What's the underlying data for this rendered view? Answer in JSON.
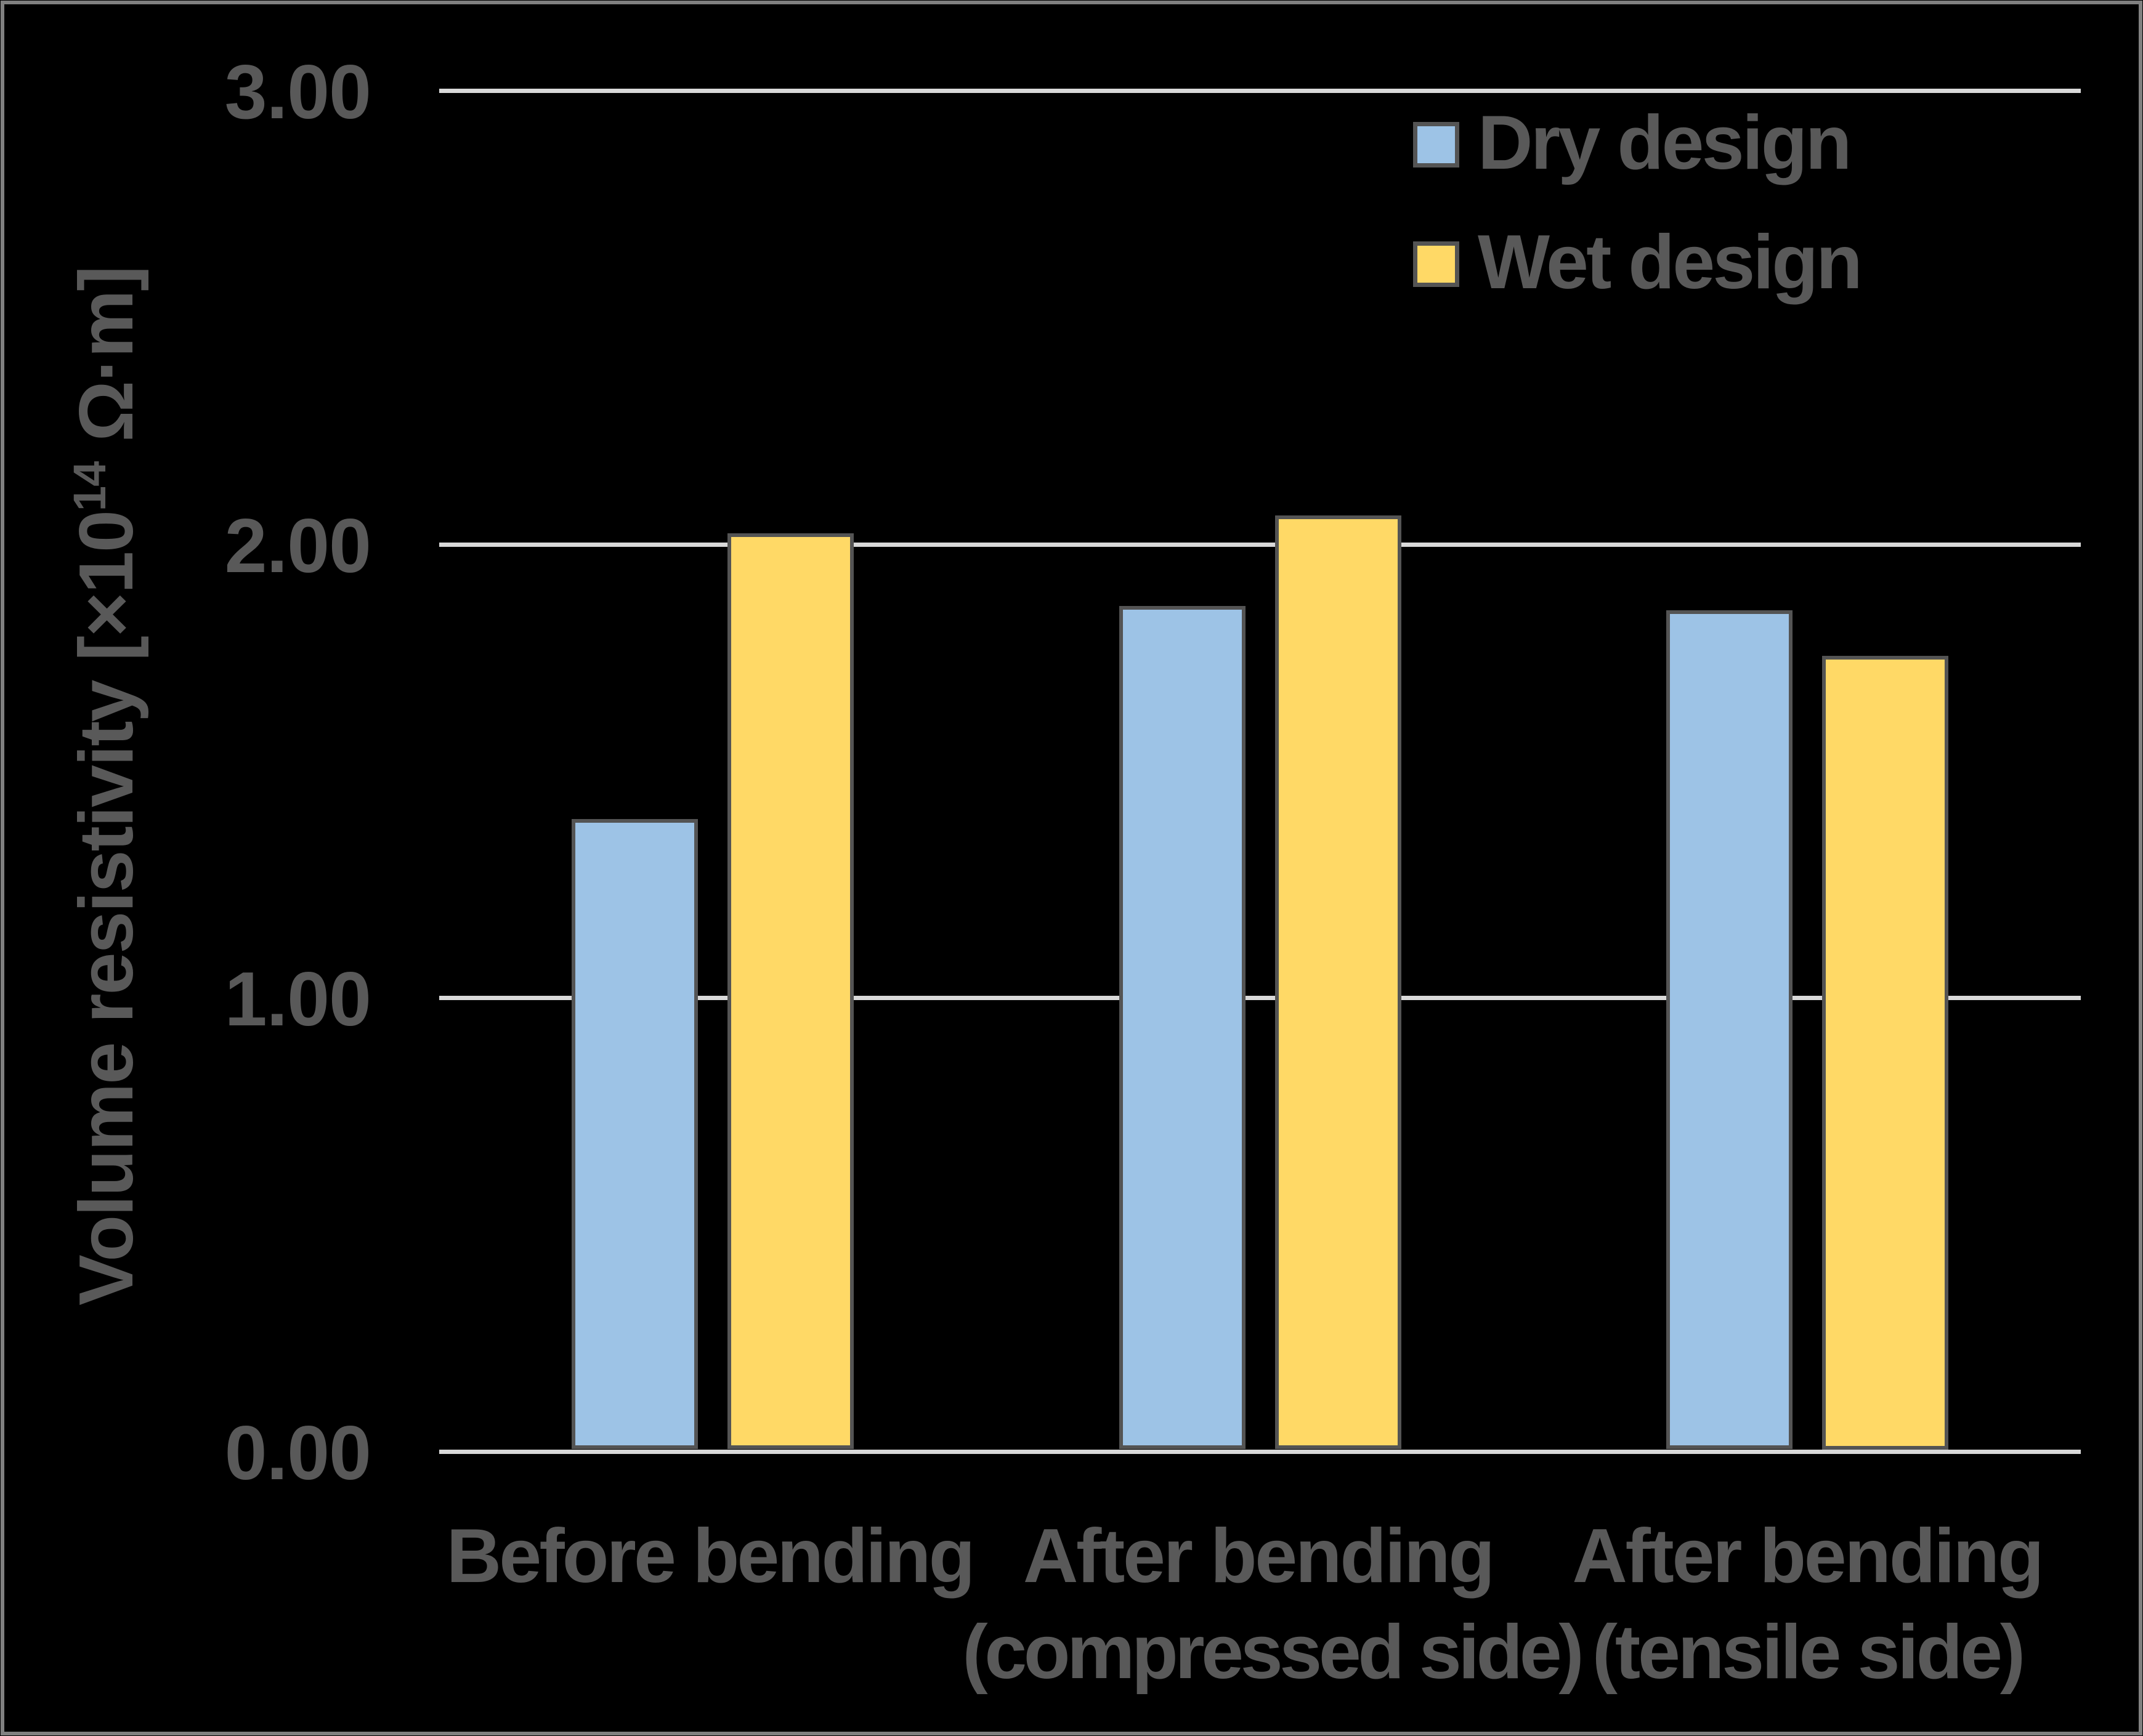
{
  "chart_data": {
    "type": "bar",
    "categories": [
      {
        "line1": "Before bending",
        "line2": ""
      },
      {
        "line1": "After bending",
        "line2": "(compressed side)"
      },
      {
        "line1": "After bending",
        "line2": "(tensile side)"
      }
    ],
    "series": [
      {
        "name": "Dry design",
        "fill": "#9dc3e6",
        "outline": "#545454",
        "values": [
          1.39,
          1.86,
          1.85
        ]
      },
      {
        "name": "Wet design",
        "fill": "#ffd966",
        "outline": "#545454",
        "values": [
          2.02,
          2.06,
          1.75
        ]
      }
    ],
    "y_axis": {
      "title_prefix": "Volume resistivity [×10",
      "title_sup": "14",
      "title_suffix": " Ω·m]",
      "ticks": [
        {
          "label": "0.00",
          "value": 0
        },
        {
          "label": "1.00",
          "value": 1
        },
        {
          "label": "2.00",
          "value": 2
        },
        {
          "label": "3.00",
          "value": 3
        }
      ],
      "range": [
        0,
        3
      ]
    },
    "legend": {
      "position": "top-right"
    },
    "grid": true,
    "styles": {
      "background": "#000000",
      "frame_color": "#808080",
      "grid_color": "#d9d9d9",
      "text_color": "#595959"
    }
  }
}
